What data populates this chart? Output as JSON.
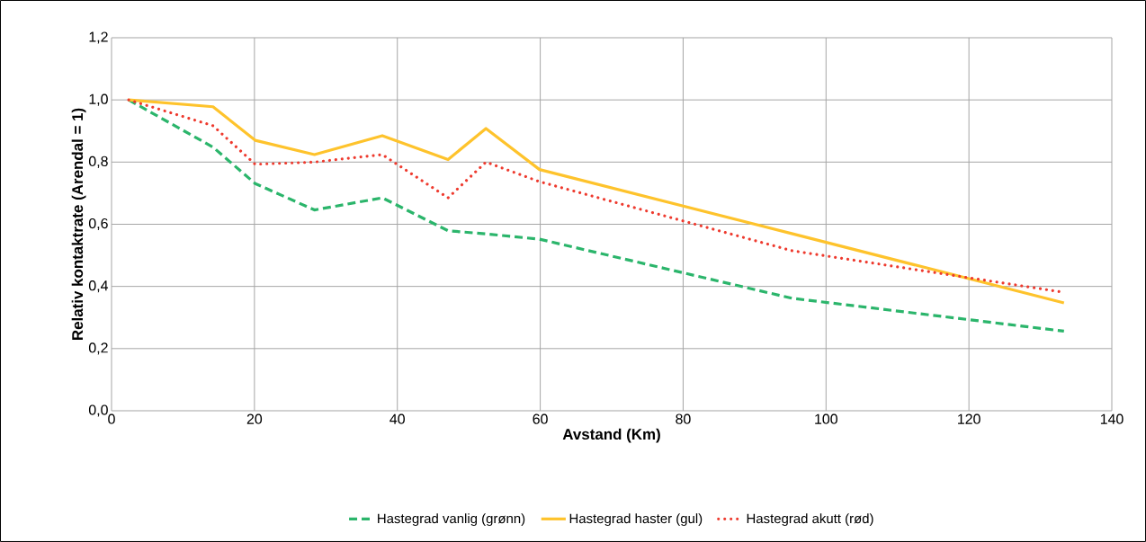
{
  "chart_data": {
    "type": "line",
    "xlabel": "Avstand (Km)",
    "ylabel": "Relativ kontaktrate (Arendal = 1)",
    "x": [
      2.4,
      14.2,
      20.1,
      28.4,
      37.9,
      47.1,
      52.4,
      59.9,
      95.2,
      133.3
    ],
    "series": [
      {
        "name": "Hastegrad vanlig (grønn)",
        "color": "#2bb56b",
        "line_style": "dashed",
        "values": [
          1.0,
          0.848,
          0.731,
          0.646,
          0.685,
          0.579,
          0.569,
          0.552,
          0.362,
          0.256
        ]
      },
      {
        "name": "Hastegrad haster (gul)",
        "color": "#fec32c",
        "line_style": "solid",
        "values": [
          1.0,
          0.978,
          0.87,
          0.824,
          0.885,
          0.808,
          0.908,
          0.776,
          0.57,
          0.347
        ]
      },
      {
        "name": "Hastegrad akutt (rød)",
        "color": "#ee3a2e",
        "line_style": "dotted",
        "values": [
          1.0,
          0.917,
          0.793,
          0.8,
          0.824,
          0.685,
          0.8,
          0.737,
          0.515,
          0.381
        ]
      }
    ],
    "xlim": [
      0,
      140
    ],
    "xticks": [
      0,
      20,
      40,
      60,
      80,
      100,
      120,
      140
    ],
    "ylim": [
      0,
      1.2
    ],
    "yticks": [
      {
        "value": 0,
        "label": "0,0"
      },
      {
        "value": 0.2,
        "label": "0,2"
      },
      {
        "value": 0.4,
        "label": "0,4"
      },
      {
        "value": 0.6,
        "label": "0,6"
      },
      {
        "value": 0.8,
        "label": "0,8"
      },
      {
        "value": 1.0,
        "label": "1,0"
      },
      {
        "value": 1.2,
        "label": "1,2"
      }
    ],
    "grid": true,
    "legend": "bottom",
    "marker": "none"
  }
}
